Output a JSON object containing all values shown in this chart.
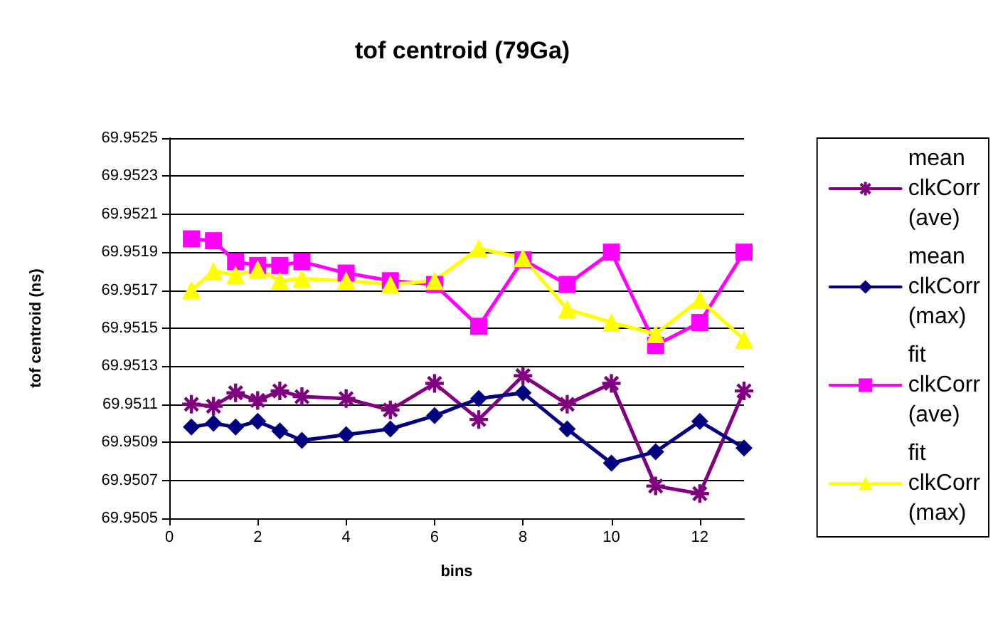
{
  "chart_data": {
    "type": "line",
    "title": "tof centroid (79Ga)",
    "xlabel": "bins",
    "ylabel": "tof centroid (ns)",
    "x": [
      0.5,
      1,
      1.5,
      2,
      2.5,
      3,
      4,
      5,
      6,
      7,
      8,
      9,
      10,
      11,
      12,
      13
    ],
    "series": [
      {
        "name": "mean clkCorr (ave)",
        "color": "#800080",
        "marker": "cross",
        "values": [
          69.9511,
          69.95109,
          69.95116,
          69.95112,
          69.95117,
          69.95114,
          69.95113,
          69.95107,
          69.95121,
          69.95102,
          69.95125,
          69.9511,
          69.95121,
          69.95067,
          69.95063,
          69.95117
        ]
      },
      {
        "name": "mean clkCorr (max)",
        "color": "#000080",
        "marker": "diamond",
        "values": [
          69.95098,
          69.951,
          69.95098,
          69.95101,
          69.95096,
          69.95091,
          69.95094,
          69.95097,
          69.95104,
          69.95113,
          69.95116,
          69.95097,
          69.95079,
          69.95085,
          69.95101,
          69.95087
        ]
      },
      {
        "name": "fit clkCorr (ave)",
        "color": "#ff00ff",
        "marker": "square",
        "values": [
          69.95197,
          69.95196,
          69.95185,
          69.95183,
          69.95183,
          69.95185,
          69.95179,
          69.95175,
          69.95173,
          69.95151,
          69.95186,
          69.95173,
          69.9519,
          69.95141,
          69.95153,
          69.9519
        ]
      },
      {
        "name": "fit clkCorr (max)",
        "color": "#ffff00",
        "marker": "triangle",
        "values": [
          69.9517,
          69.9518,
          69.95178,
          69.95181,
          69.95175,
          69.95176,
          69.95175,
          69.95173,
          69.95175,
          69.95192,
          69.95187,
          69.9516,
          69.95153,
          69.95147,
          69.95165,
          69.95144
        ]
      }
    ],
    "xlim": [
      0,
      13
    ],
    "xticks": [
      0,
      2,
      4,
      6,
      8,
      10,
      12
    ],
    "ylim": [
      69.9505,
      69.9525
    ],
    "yticks": [
      69.9505,
      69.9507,
      69.9509,
      69.9511,
      69.9513,
      69.9515,
      69.9517,
      69.9519,
      69.9521,
      69.9523,
      69.9525
    ],
    "grid": "y",
    "legend": "right",
    "line_style": "solid"
  }
}
